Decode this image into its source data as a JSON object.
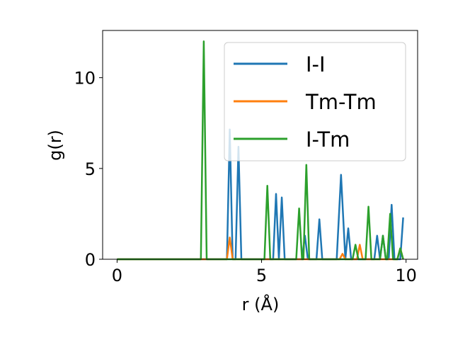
{
  "chart_data": {
    "type": "line",
    "title": "",
    "xlabel": "r (Å)",
    "ylabel": "g(r)",
    "xlim": [
      -0.5,
      10.4
    ],
    "ylim": [
      0,
      12.6
    ],
    "xticks": [
      0,
      5,
      10
    ],
    "yticks": [
      0,
      5,
      10
    ],
    "grid": false,
    "legend_position": "upper-right",
    "series": [
      {
        "name": "I-I",
        "color": "#1f77b4",
        "points": [
          [
            0.0,
            0
          ],
          [
            3.8,
            0
          ],
          [
            3.9,
            7.15
          ],
          [
            4.0,
            0
          ],
          [
            4.1,
            0
          ],
          [
            4.2,
            6.2
          ],
          [
            4.3,
            0
          ],
          [
            5.4,
            0
          ],
          [
            5.5,
            3.6
          ],
          [
            5.6,
            0
          ],
          [
            5.7,
            3.4
          ],
          [
            5.8,
            0
          ],
          [
            6.4,
            0
          ],
          [
            6.5,
            1.3
          ],
          [
            6.6,
            0
          ],
          [
            6.9,
            0
          ],
          [
            7.0,
            2.2
          ],
          [
            7.1,
            0
          ],
          [
            7.6,
            0
          ],
          [
            7.75,
            4.65
          ],
          [
            7.9,
            0
          ],
          [
            8.0,
            1.7
          ],
          [
            8.1,
            0
          ],
          [
            8.9,
            0
          ],
          [
            9.0,
            1.3
          ],
          [
            9.1,
            0
          ],
          [
            9.2,
            1.3
          ],
          [
            9.3,
            0
          ],
          [
            9.4,
            0
          ],
          [
            9.5,
            3.0
          ],
          [
            9.6,
            0
          ],
          [
            9.8,
            0
          ],
          [
            9.9,
            2.3
          ]
        ]
      },
      {
        "name": "Tm-Tm",
        "color": "#ff7f0e",
        "points": [
          [
            0.0,
            0
          ],
          [
            3.8,
            0
          ],
          [
            3.9,
            1.2
          ],
          [
            4.0,
            0
          ],
          [
            7.7,
            0
          ],
          [
            7.8,
            0.3
          ],
          [
            7.9,
            0
          ],
          [
            8.3,
            0
          ],
          [
            8.4,
            0.8
          ],
          [
            8.5,
            0
          ],
          [
            9.7,
            0
          ],
          [
            9.8,
            0.6
          ],
          [
            9.9,
            0
          ]
        ]
      },
      {
        "name": "I-Tm",
        "color": "#2ca02c",
        "points": [
          [
            0.0,
            0
          ],
          [
            2.9,
            0
          ],
          [
            3.0,
            12.0
          ],
          [
            3.1,
            0
          ],
          [
            5.1,
            0
          ],
          [
            5.2,
            4.05
          ],
          [
            5.3,
            0
          ],
          [
            6.2,
            0
          ],
          [
            6.3,
            2.8
          ],
          [
            6.4,
            0
          ],
          [
            6.45,
            0
          ],
          [
            6.55,
            5.2
          ],
          [
            6.65,
            0
          ],
          [
            8.15,
            0
          ],
          [
            8.25,
            0.8
          ],
          [
            8.35,
            0
          ],
          [
            8.6,
            0
          ],
          [
            8.7,
            2.9
          ],
          [
            8.8,
            0
          ],
          [
            9.1,
            0
          ],
          [
            9.2,
            1.3
          ],
          [
            9.3,
            0
          ],
          [
            9.35,
            0
          ],
          [
            9.45,
            2.5
          ],
          [
            9.55,
            0
          ],
          [
            9.7,
            0
          ],
          [
            9.8,
            0.6
          ],
          [
            9.9,
            0
          ]
        ]
      }
    ]
  }
}
